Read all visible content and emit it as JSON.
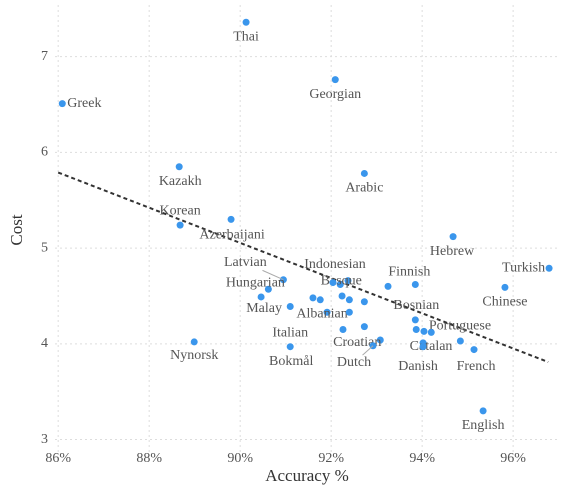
{
  "chart_data": {
    "type": "scatter",
    "xlabel": "Accuracy %",
    "ylabel": "Cost",
    "color": "#3a96ec",
    "grid": true,
    "xlim": [
      85.93,
      97.03
    ],
    "ylim": [
      2.87,
      7.54
    ],
    "xticks": [
      {
        "value": 86,
        "label": "86%"
      },
      {
        "value": 88,
        "label": "88%"
      },
      {
        "value": 90,
        "label": "90%"
      },
      {
        "value": 92,
        "label": "92%"
      },
      {
        "value": 94,
        "label": "94%"
      },
      {
        "value": 96,
        "label": "96%"
      }
    ],
    "yticks": [
      3,
      4,
      5,
      6,
      7
    ],
    "x": [
      90.13,
      92.09,
      86.09,
      88.66,
      92.73,
      88.68,
      89.8,
      94.68,
      96.79,
      95.82,
      90.95,
      92.37,
      92.2,
      93.85,
      90.62,
      90.46,
      91.91,
      93.85,
      94.04,
      91.1,
      91.1,
      88.99,
      93.08,
      92.92,
      94.02,
      94.02,
      95.14,
      95.34,
      94.84,
      91.6,
      91.76,
      92.24,
      92.4,
      92.73,
      92.4,
      92.73,
      92.26,
      93.25,
      93.87,
      94.2,
      92.04
    ],
    "y": [
      7.36,
      6.76,
      6.51,
      5.85,
      5.78,
      5.24,
      5.3,
      5.12,
      4.79,
      4.59,
      4.67,
      4.66,
      4.62,
      4.62,
      4.57,
      4.49,
      4.33,
      4.25,
      4.13,
      3.97,
      4.39,
      4.02,
      4.04,
      3.98,
      4.01,
      3.97,
      3.94,
      3.3,
      4.03,
      4.48,
      4.46,
      4.5,
      4.46,
      4.44,
      4.33,
      4.18,
      4.15,
      4.6,
      4.15,
      4.12,
      4.64
    ],
    "labels": [
      "Thai",
      "Georgian",
      "Greek",
      "Kazakh",
      "Arabic",
      "Korean",
      "Azerbaijani",
      "Hebrew",
      "Turkish",
      "Chinese",
      "Latvian",
      "Indonesian",
      "Basque",
      "Finnish",
      "Hungarian",
      "Malay",
      "Albanian",
      "Bosnian",
      "Portuguese",
      "Bokmål",
      "Italian",
      "Nynorsk",
      "Croatian",
      "Dutch",
      "Catalan",
      "Danish",
      "French",
      "English",
      null,
      null,
      null,
      null,
      null,
      null,
      null,
      null,
      null,
      null,
      null,
      null,
      null
    ],
    "trend": {
      "x": [
        86,
        96.77
      ],
      "y": [
        5.79,
        3.81
      ]
    }
  }
}
